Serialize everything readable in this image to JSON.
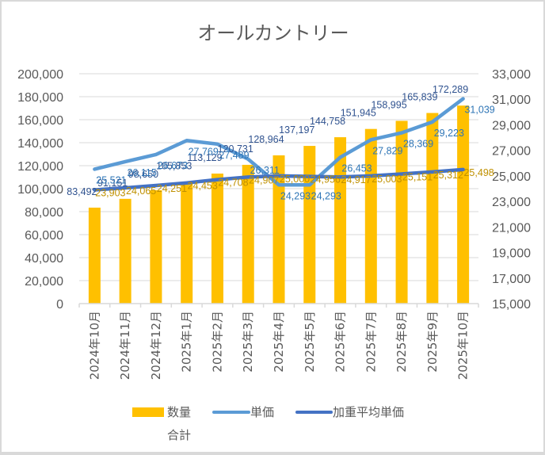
{
  "chart_data": {
    "type": "bar+line",
    "title": "オールカントリー",
    "categories": [
      "2024年10月",
      "2024年11月",
      "2024年12月",
      "2025年1月",
      "2025年2月",
      "2025年3月",
      "2025年4月",
      "2025年5月",
      "2025年6月",
      "2025年7月",
      "2025年8月",
      "2025年9月",
      "2025年10月"
    ],
    "series": [
      {
        "name": "数量合計",
        "type": "bar",
        "axis": "left",
        "color": "#ffc000",
        "values": [
          83492,
          91151,
          98650,
          105853,
          113129,
          120731,
          128964,
          137197,
          144758,
          151945,
          158995,
          165839,
          172289
        ],
        "labels": [
          "83,492",
          "91,151",
          "98,650",
          "105,853",
          "113,129",
          "120,731",
          "128,964",
          "137,197",
          "144,758",
          "151,945",
          "158,995",
          "165,839",
          "172,289"
        ]
      },
      {
        "name": "単価",
        "type": "line",
        "axis": "right",
        "color": "#5b9bd5",
        "values": [
          25521,
          26115,
          26673,
          27769,
          27489,
          26311,
          24293,
          24293,
          26453,
          27829,
          28369,
          29223,
          31039
        ],
        "labels": [
          "25,521",
          "26,115",
          "26,673",
          "27,769",
          "27,489",
          "26,311",
          "24,293",
          "24,293",
          "26,453",
          "27,829",
          "28,369",
          "29,223",
          "31,039"
        ]
      },
      {
        "name": "加重平均単価",
        "type": "line",
        "axis": "right",
        "color": "#4472c4",
        "values": [
          23903,
          24065,
          24251,
          24453,
          24708,
          24907,
          25000,
          24956,
          24917,
          25003,
          25151,
          25312,
          25498
        ],
        "labels": [
          "23,903",
          "24,065",
          "24,251",
          "24,453",
          "24,708",
          "24,907",
          "25,000",
          "24,956",
          "24,917",
          "25,003",
          "25,151",
          "25,312",
          "25,498"
        ]
      }
    ],
    "left_axis": {
      "range": [
        0,
        200000
      ],
      "ticks": [
        "0",
        "20,000",
        "40,000",
        "60,000",
        "80,000",
        "100,000",
        "120,000",
        "140,000",
        "160,000",
        "180,000",
        "200,000"
      ]
    },
    "right_axis": {
      "range": [
        15000,
        33000
      ],
      "ticks": [
        "15,000",
        "17,000",
        "19,000",
        "21,000",
        "23,000",
        "25,000",
        "27,000",
        "29,000",
        "31,000",
        "33,000"
      ]
    },
    "grid": true,
    "legend": {
      "position": "bottom",
      "entries": [
        {
          "label_line1": "数量",
          "label_line2": "合計",
          "kind": "bar"
        },
        {
          "label_line1": "単価",
          "label_line2": "",
          "kind": "line"
        },
        {
          "label_line1": "加重平均単価",
          "label_line2": "",
          "kind": "line"
        }
      ]
    }
  }
}
